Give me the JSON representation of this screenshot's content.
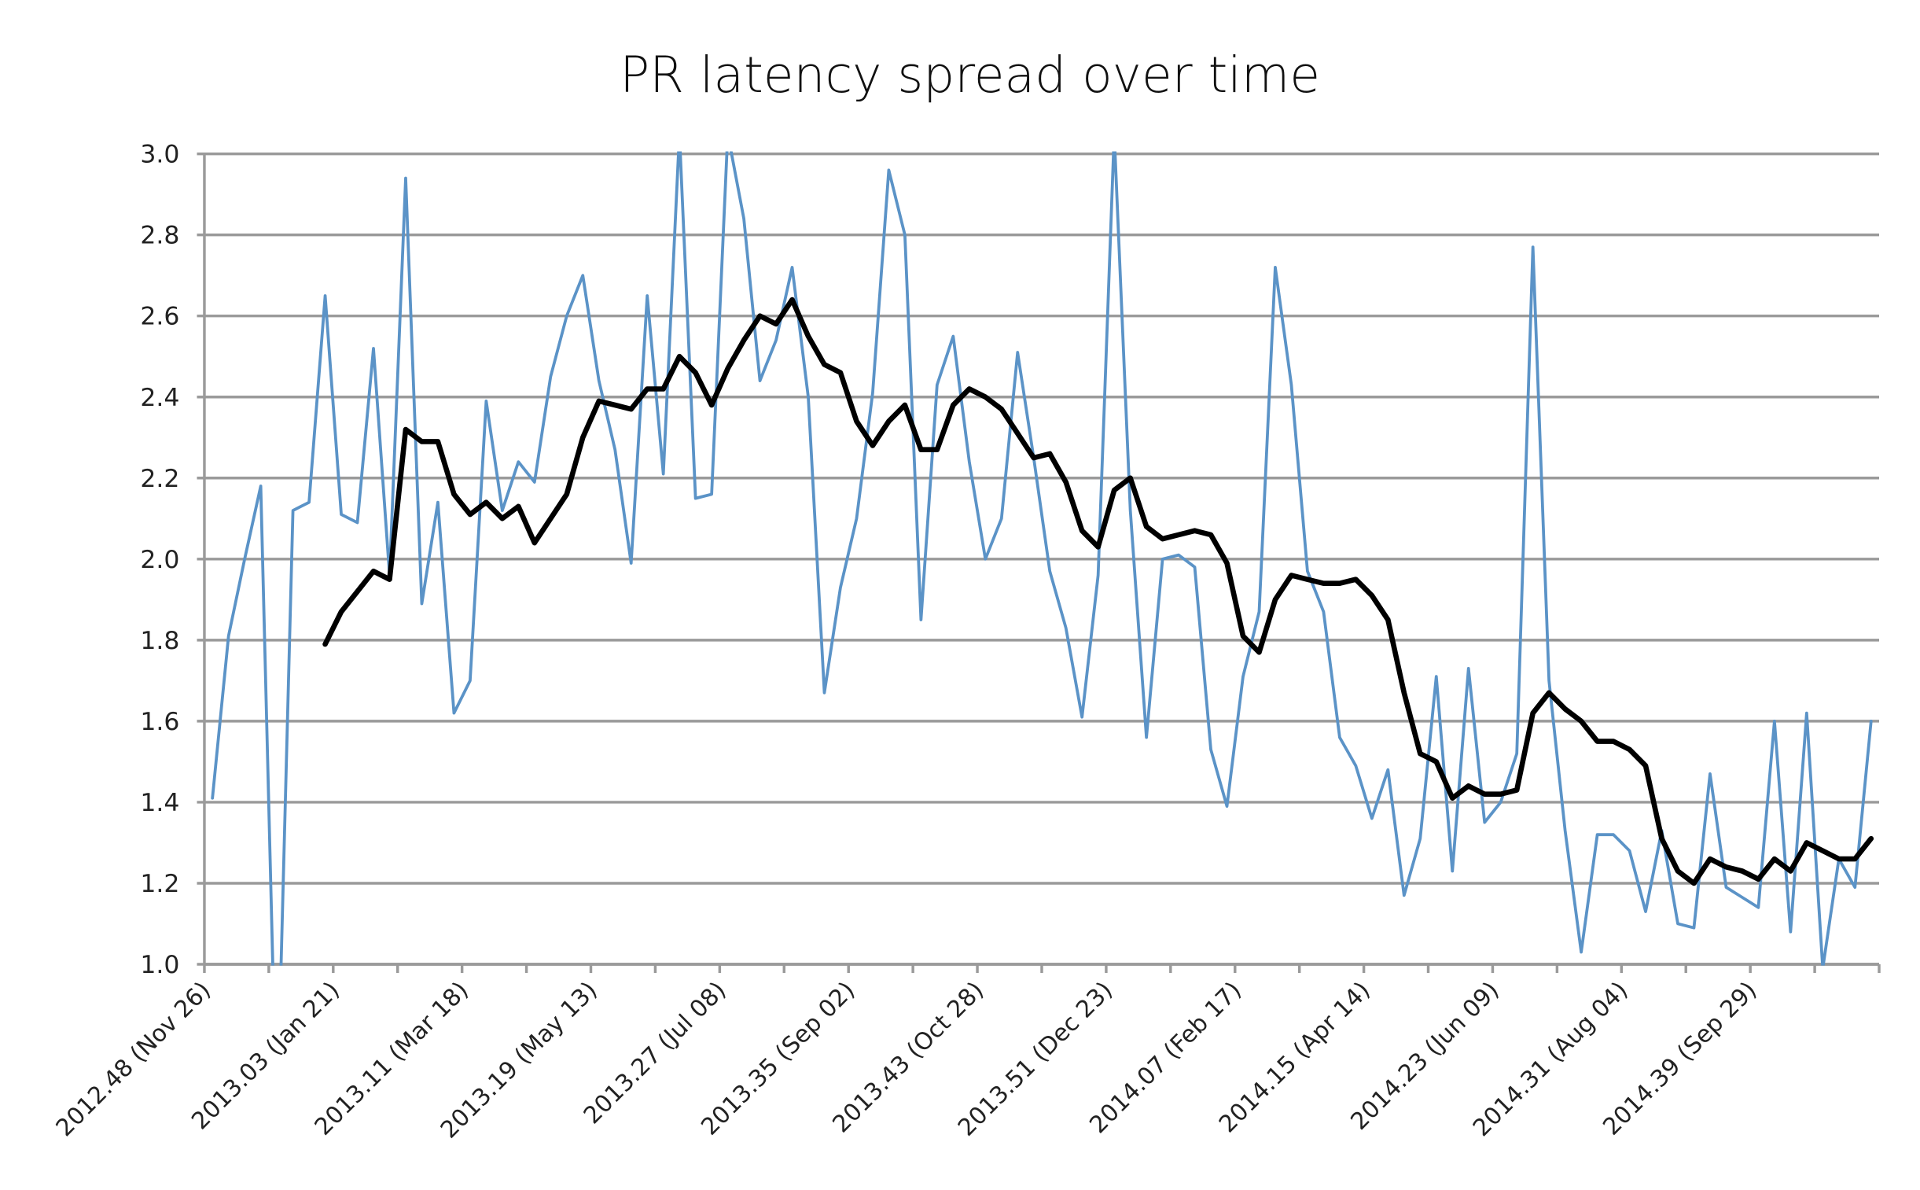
{
  "chart_data": {
    "type": "line",
    "title": "PR latency spread over time",
    "xlabel": "",
    "ylabel": "",
    "ylim": [
      1.0,
      3.0
    ],
    "yticks": [
      "1.0",
      "1.2",
      "1.4",
      "1.6",
      "1.8",
      "2.0",
      "2.2",
      "2.4",
      "2.6",
      "2.8",
      "3.0"
    ],
    "grid": true,
    "legend": "none",
    "n_points": 104,
    "x_tick_every": 4,
    "x_label_every": 8,
    "xtick_labels": [
      "2012.48 (Nov 26)",
      "2013.03 (Jan 21)",
      "2013.11 (Mar 18)",
      "2013.19 (May 13)",
      "2013.27 (Jul 08)",
      "2013.35 (Sep 02)",
      "2013.43 (Oct 28)",
      "2013.51 (Dec 23)",
      "2014.07 (Feb 17)",
      "2014.15 (Apr 14)",
      "2014.23 (Jun 09)",
      "2014.31 (Aug 04)",
      "2014.39 (Sep 29)"
    ],
    "series": [
      {
        "color": "#5b93c7",
        "style": "thin",
        "values": [
          1.41,
          1.81,
          2.0,
          2.18,
          0.6,
          2.12,
          2.14,
          2.65,
          2.11,
          2.09,
          2.52,
          1.96,
          2.94,
          1.89,
          2.14,
          1.62,
          1.7,
          2.39,
          2.12,
          2.24,
          2.19,
          2.45,
          2.6,
          2.7,
          2.44,
          2.27,
          1.99,
          2.65,
          2.21,
          3.05,
          2.15,
          2.16,
          3.05,
          2.84,
          2.44,
          2.54,
          2.72,
          2.4,
          1.67,
          1.93,
          2.1,
          2.41,
          2.96,
          2.8,
          1.85,
          2.43,
          2.55,
          2.24,
          2.0,
          2.1,
          2.51,
          2.25,
          1.97,
          1.83,
          1.61,
          1.96,
          3.05,
          2.12,
          1.56,
          2.0,
          2.01,
          1.98,
          1.53,
          1.39,
          1.71,
          1.87,
          2.72,
          2.43,
          1.97,
          1.87,
          1.56,
          1.49,
          1.36,
          1.48,
          1.17,
          1.31,
          1.71,
          1.23,
          1.73,
          1.35,
          1.4,
          1.52,
          2.77,
          1.7,
          1.33,
          1.03,
          1.32,
          1.32,
          1.28,
          1.13,
          1.33,
          1.1,
          1.09,
          1.47,
          1.19,
          1.165,
          1.14,
          1.6,
          1.08,
          1.62,
          0.99,
          1.26,
          1.19,
          1.6
        ]
      },
      {
        "color": "#000000",
        "style": "thick",
        "values": [
          null,
          null,
          null,
          null,
          null,
          null,
          null,
          1.79,
          1.87,
          1.92,
          1.97,
          1.95,
          2.32,
          2.29,
          2.29,
          2.16,
          2.11,
          2.14,
          2.1,
          2.13,
          2.04,
          2.1,
          2.16,
          2.3,
          2.39,
          2.38,
          2.37,
          2.42,
          2.42,
          2.5,
          2.46,
          2.38,
          2.47,
          2.54,
          2.6,
          2.58,
          2.64,
          2.55,
          2.48,
          2.46,
          2.34,
          2.28,
          2.34,
          2.38,
          2.27,
          2.27,
          2.38,
          2.42,
          2.4,
          2.37,
          2.31,
          2.25,
          2.26,
          2.19,
          2.07,
          2.03,
          2.17,
          2.2,
          2.08,
          2.05,
          2.06,
          2.07,
          2.06,
          1.99,
          1.81,
          1.77,
          1.9,
          1.96,
          1.95,
          1.94,
          1.94,
          1.95,
          1.91,
          1.85,
          1.67,
          1.52,
          1.5,
          1.41,
          1.44,
          1.42,
          1.42,
          1.43,
          1.62,
          1.67,
          1.63,
          1.6,
          1.55,
          1.55,
          1.53,
          1.49,
          1.31,
          1.23,
          1.2,
          1.26,
          1.24,
          1.23,
          1.21,
          1.26,
          1.23,
          1.3,
          1.28,
          1.26,
          1.26,
          1.31
        ]
      }
    ]
  }
}
